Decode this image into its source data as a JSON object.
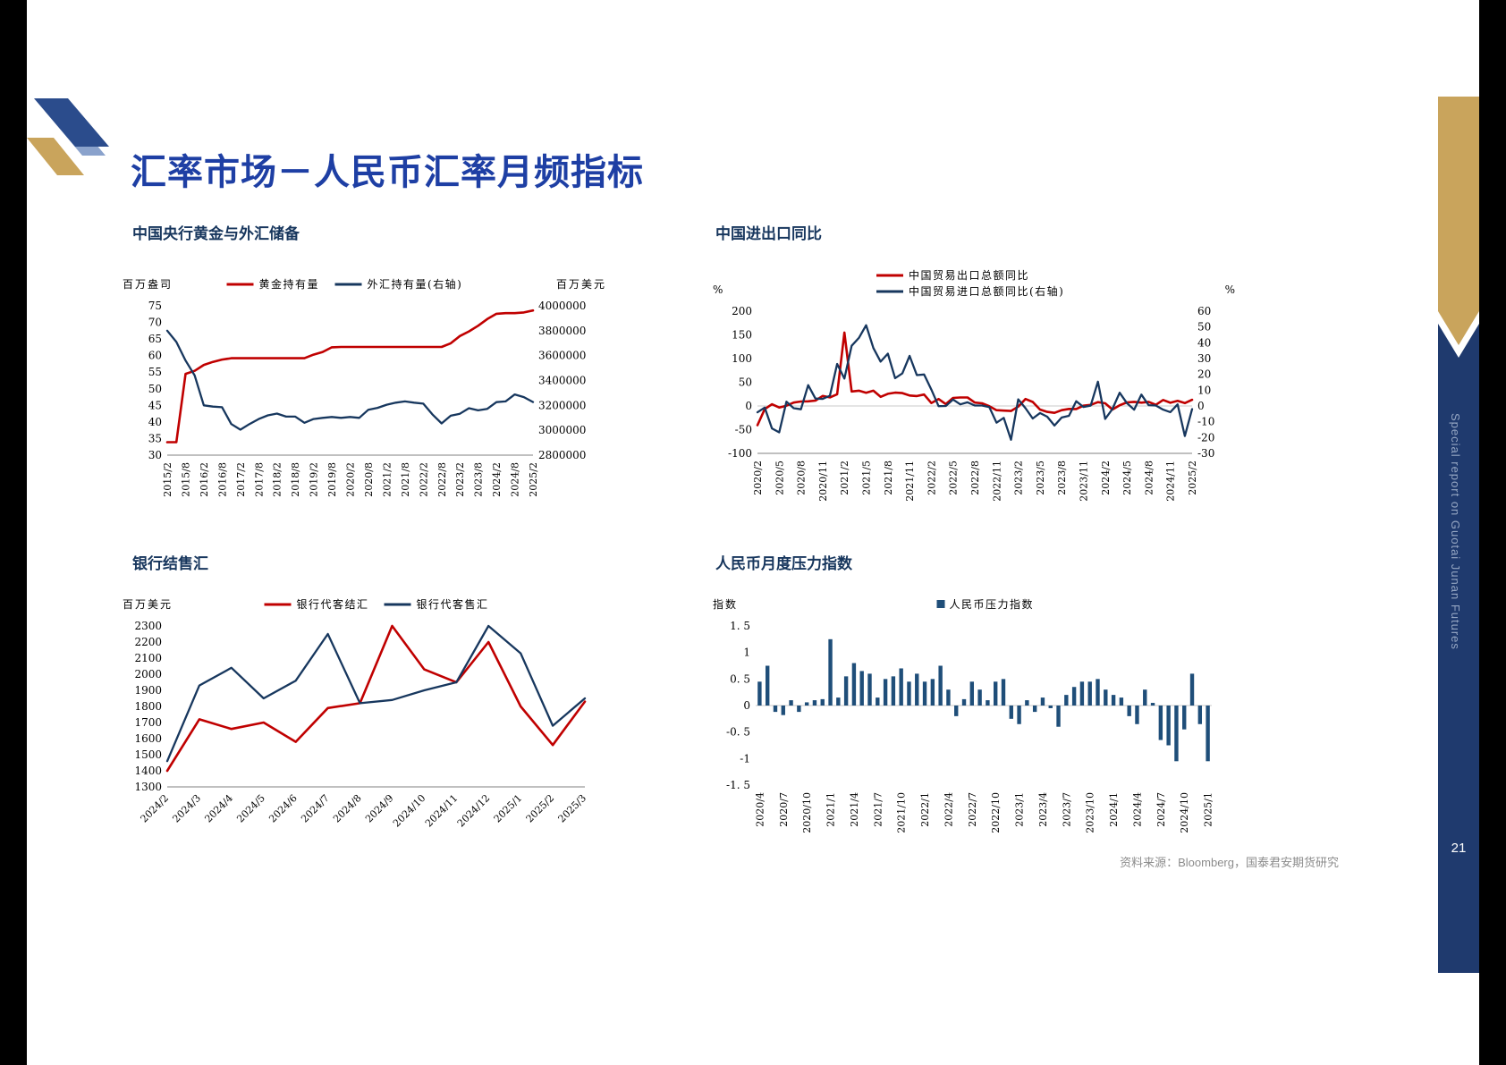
{
  "page": {
    "title": "汇率市场－人民币汇率月频指标",
    "page_number": "21",
    "source_note": "资料来源：Bloomberg，国泰君安期货研究",
    "side_banner_text": "Special report on Guotai Junan Futures"
  },
  "colors": {
    "title_blue": "#1e3fa4",
    "heading_navy": "#17365d",
    "line_red": "#c00000",
    "line_navy": "#17375e",
    "bar_navy": "#1f4e79",
    "banner_gold": "#c9a45c",
    "banner_blue": "#1f3a6e"
  },
  "chart_data": [
    {
      "id": "gold-fx-reserves",
      "type": "line",
      "title": "中国央行黄金与外汇储备",
      "left_unit": "百万盎司",
      "right_unit": "百万美元",
      "left_range": [
        30,
        75
      ],
      "right_range": [
        2800000,
        4000000
      ],
      "left_ticks": [
        75,
        70,
        65,
        60,
        55,
        50,
        45,
        40,
        35,
        30
      ],
      "right_ticks": [
        4000000,
        3800000,
        3600000,
        3400000,
        3200000,
        3000000,
        2800000
      ],
      "x_labels": [
        "2015/2",
        "2015/8",
        "2016/2",
        "2016/8",
        "2017/2",
        "2017/8",
        "2018/2",
        "2018/8",
        "2019/2",
        "2019/8",
        "2020/2",
        "2020/8",
        "2021/2",
        "2021/8",
        "2022/2",
        "2022/8",
        "2023/2",
        "2023/8",
        "2024/2",
        "2024/8",
        "2025/2"
      ],
      "series": [
        {
          "name": "黄金持有量",
          "axis": "left",
          "color": "#c00000",
          "values": [
            33.9,
            33.9,
            54.5,
            55.4,
            57.2,
            58.1,
            58.8,
            59.2,
            59.2,
            59.2,
            59.2,
            59.2,
            59.2,
            59.2,
            59.2,
            59.2,
            60.3,
            61.1,
            62.5,
            62.6,
            62.6,
            62.6,
            62.6,
            62.6,
            62.6,
            62.6,
            62.6,
            62.6,
            62.6,
            62.6,
            62.6,
            63.7,
            65.9,
            67.3,
            69.0,
            71.0,
            72.6,
            72.8,
            72.8,
            73.0,
            73.6
          ]
        },
        {
          "name": "外汇持有量(右轴)",
          "axis": "right",
          "color": "#17375e",
          "values": [
            3800000,
            3710000,
            3560000,
            3440000,
            3200000,
            3190000,
            3185000,
            3050000,
            3005000,
            3050000,
            3090000,
            3120000,
            3134000,
            3110000,
            3110000,
            3060000,
            3090000,
            3100000,
            3107000,
            3100000,
            3107000,
            3100000,
            3165000,
            3180000,
            3205000,
            3222000,
            3232000,
            3222000,
            3214000,
            3128000,
            3055000,
            3117000,
            3133000,
            3177000,
            3160000,
            3172000,
            3226000,
            3232000,
            3288000,
            3266000,
            3227000
          ]
        }
      ]
    },
    {
      "id": "import-export-yoy",
      "type": "line",
      "title": "中国进出口同比",
      "left_unit": "%",
      "right_unit": "%",
      "zero_line": true,
      "left_range": [
        -100,
        200
      ],
      "right_range": [
        -30,
        60
      ],
      "left_ticks": [
        200,
        150,
        100,
        50,
        0,
        -50,
        -100
      ],
      "right_ticks": [
        60,
        50,
        40,
        30,
        20,
        10,
        0,
        -10,
        -20,
        -30
      ],
      "x_labels": [
        "2020/2",
        "2020/5",
        "2020/8",
        "2020/11",
        "2021/2",
        "2021/5",
        "2021/8",
        "2021/11",
        "2022/2",
        "2022/5",
        "2022/8",
        "2022/11",
        "2023/2",
        "2023/5",
        "2023/8",
        "2023/11",
        "2024/2",
        "2024/5",
        "2024/8",
        "2024/11",
        "2025/2"
      ],
      "series": [
        {
          "name": "中国贸易出口总额同比",
          "axis": "left",
          "color": "#c00000",
          "values": [
            -40.6,
            -6.6,
            3.5,
            -3.3,
            0.5,
            7.2,
            9.5,
            9.9,
            11.4,
            21.1,
            18.1,
            24.8,
            154.9,
            30.6,
            32.3,
            27.9,
            32.2,
            19.3,
            25.6,
            28.1,
            27.1,
            22.0,
            20.9,
            24.1,
            6.2,
            14.7,
            3.9,
            16.9,
            17.9,
            18.0,
            7.1,
            5.7,
            -0.3,
            -8.9,
            -9.9,
            -10.5,
            -1.3,
            14.8,
            8.5,
            -7.5,
            -12.4,
            -14.5,
            -8.8,
            -6.2,
            -6.4,
            0.5,
            2.3,
            8.2,
            5.6,
            -7.5,
            1.5,
            7.6,
            8.6,
            7.0,
            8.7,
            2.4,
            12.7,
            6.7,
            10.7,
            6.0,
            13.0
          ]
        },
        {
          "name": "中国贸易进口总额同比(右轴)",
          "axis": "right",
          "color": "#17375e",
          "values": [
            -4.0,
            -1.0,
            -14.2,
            -16.7,
            2.7,
            -1.4,
            -2.1,
            13.2,
            4.7,
            4.5,
            6.5,
            26.6,
            17.3,
            38.1,
            43.1,
            51.1,
            36.7,
            28.1,
            33.1,
            17.6,
            20.6,
            31.7,
            19.5,
            19.9,
            10.4,
            -0.1,
            0.0,
            4.1,
            1.0,
            2.3,
            0.3,
            0.3,
            -0.7,
            -10.6,
            -7.5,
            -21.4,
            4.2,
            -1.4,
            -7.9,
            -4.5,
            -6.8,
            -12.4,
            -7.3,
            -6.2,
            3.0,
            -0.6,
            0.2,
            15.4,
            -8.2,
            -1.9,
            8.4,
            1.8,
            -2.3,
            7.2,
            0.5,
            0.3,
            -2.3,
            -3.9,
            1.0,
            -19.0,
            -2.0
          ]
        }
      ]
    },
    {
      "id": "bank-fx-settlement",
      "type": "line",
      "title": "银行结售汇",
      "left_unit": "百万美元",
      "left_range": [
        1300,
        2300
      ],
      "left_ticks": [
        2300,
        2200,
        2100,
        2000,
        1900,
        1800,
        1700,
        1600,
        1500,
        1400,
        1300
      ],
      "x_labels": [
        "2024/2",
        "2024/3",
        "2024/4",
        "2024/5",
        "2024/6",
        "2024/7",
        "2024/8",
        "2024/9",
        "2024/10",
        "2024/11",
        "2024/12",
        "2025/1",
        "2025/2",
        "2025/3"
      ],
      "series": [
        {
          "name": "银行代客结汇",
          "axis": "left",
          "color": "#c00000",
          "values": [
            1400,
            1720,
            1660,
            1700,
            1580,
            1790,
            1820,
            2300,
            2030,
            1950,
            2200,
            1800,
            1560,
            1830
          ]
        },
        {
          "name": "银行代客售汇",
          "axis": "left",
          "color": "#17375e",
          "values": [
            1460,
            1930,
            2040,
            1850,
            1960,
            2250,
            1820,
            1840,
            1900,
            1950,
            2300,
            2130,
            1680,
            1850
          ]
        }
      ]
    },
    {
      "id": "rmb-pressure-index",
      "type": "bar",
      "title": "人民币月度压力指数",
      "left_unit": "指数",
      "zero_line": true,
      "baseline": false,
      "left_range": [
        -1.5,
        1.5
      ],
      "left_ticks": [
        1.5,
        1,
        0.5,
        0,
        -0.5,
        -1,
        -1.5
      ],
      "left_tick_labels": [
        "1. 5",
        "1",
        "0. 5",
        "0",
        "-0. 5",
        "-1",
        "-1. 5"
      ],
      "x_labels": [
        "2020/4",
        "2020/7",
        "2020/10",
        "2021/1",
        "2021/4",
        "2021/7",
        "2021/10",
        "2022/1",
        "2022/4",
        "2022/7",
        "2022/10",
        "2023/1",
        "2023/4",
        "2023/7",
        "2023/10",
        "2024/1",
        "2024/4",
        "2024/7",
        "2024/10",
        "2025/1"
      ],
      "series": [
        {
          "name": "人民币压力指数",
          "axis": "left",
          "color": "#1f4e79",
          "values": [
            0.45,
            0.75,
            -0.12,
            -0.18,
            0.1,
            -0.12,
            0.06,
            0.1,
            0.12,
            1.25,
            0.15,
            0.55,
            0.8,
            0.65,
            0.6,
            0.15,
            0.5,
            0.55,
            0.7,
            0.45,
            0.6,
            0.45,
            0.5,
            0.75,
            0.3,
            -0.2,
            0.12,
            0.45,
            0.3,
            0.1,
            0.45,
            0.5,
            -0.25,
            -0.35,
            0.1,
            -0.12,
            0.15,
            -0.05,
            -0.4,
            0.2,
            0.35,
            0.45,
            0.45,
            0.5,
            0.3,
            0.2,
            0.15,
            -0.2,
            -0.35,
            0.3,
            0.05,
            -0.65,
            -0.75,
            -1.05,
            -0.45,
            0.6,
            -0.35,
            -1.05
          ]
        }
      ]
    }
  ]
}
